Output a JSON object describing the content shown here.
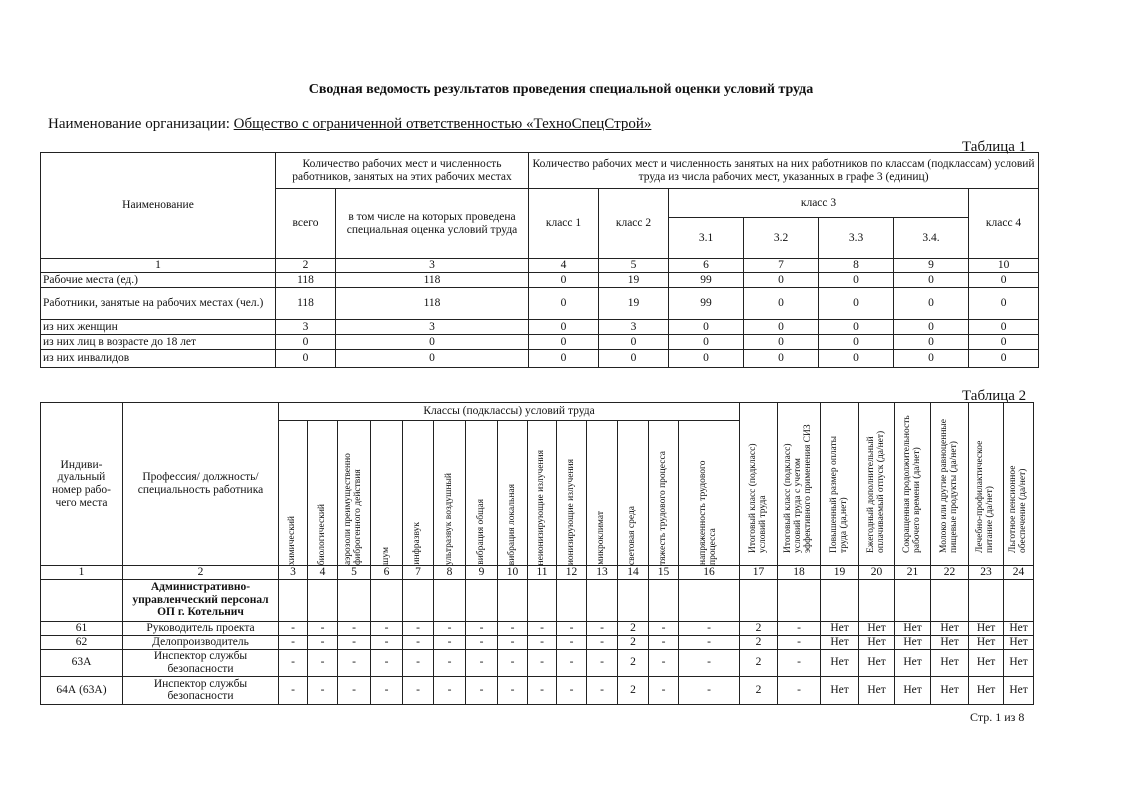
{
  "title": "Сводная ведомость результатов проведения специальной оценки условий труда",
  "org": {
    "label": "Наименование организации:",
    "value": "Общество с ограниченной ответственностью «ТехноСпецСтрой»"
  },
  "table1": {
    "caption": "Таблица 1",
    "h_name": "Наименование",
    "h_count": "Количество рабочих мест и численность работников, занятых на этих рабочих местах",
    "h_classes": "Количество рабочих мест и численность занятых на них работников по классам (подклассам) условий труда из числа рабочих мест, указанных в графе 3 (единиц)",
    "h_total": "всего",
    "h_assessed": "в том числе на которых проведена специальная оценка условий труда",
    "h_c1": "класс 1",
    "h_c2": "класс 2",
    "h_c3": "класс 3",
    "h_c4": "класс 4",
    "h_sub": [
      "3.1",
      "3.2",
      "3.3",
      "3.4."
    ],
    "nums": [
      "1",
      "2",
      "3",
      "4",
      "5",
      "6",
      "7",
      "8",
      "9",
      "10"
    ],
    "rows": [
      {
        "name": "Рабочие места (ед.)",
        "v": [
          "118",
          "118",
          "0",
          "19",
          "99",
          "0",
          "0",
          "0",
          "0"
        ]
      },
      {
        "name": "Работники, занятые на рабочих местах (чел.)",
        "v": [
          "118",
          "118",
          "0",
          "19",
          "99",
          "0",
          "0",
          "0",
          "0"
        ]
      },
      {
        "name": "из них женщин",
        "v": [
          "3",
          "3",
          "0",
          "3",
          "0",
          "0",
          "0",
          "0",
          "0"
        ]
      },
      {
        "name": "из них лиц в возрасте до 18 лет",
        "v": [
          "0",
          "0",
          "0",
          "0",
          "0",
          "0",
          "0",
          "0",
          "0"
        ]
      },
      {
        "name": "из них инвалидов",
        "v": [
          "0",
          "0",
          "0",
          "0",
          "0",
          "0",
          "0",
          "0",
          "0"
        ]
      }
    ]
  },
  "table2": {
    "caption": "Таблица 2",
    "h_id": "Индиви-дуальный номер рабо-чего места",
    "h_prof": "Профессия/ должность/ специальность работника",
    "h_classes": "Классы (подклассы) условий труда",
    "h_cols": [
      "химический",
      "биологический",
      "аэрозоли преимущественно фиброгенного действия",
      "шум",
      "инфразвук",
      "ультразвук воздушный",
      "вибрация общая",
      "вибрация локальная",
      "неионизирующие излучения",
      "ионизирующие излучения",
      "микроклимат",
      "световая среда",
      "тяжесть трудового процесса",
      "напряженность трудового процесса",
      "Итоговый класс (подкласс) условий труда",
      "Итоговый класс (подкласс) условий труда с учетом эффективного применения СИЗ",
      "Повышенный размер оплаты труда (да,нет)",
      "Ежегодный дополнительный оплачиваемый отпуск (да/нет)",
      "Сокращенная продолжительность рабочего времени (да/нет)",
      "Молоко или другие равноценные пищевые продукты (да/нет)",
      "Лечебно-профилактическое питание (да/нет)",
      "Льготное пенсионное обеспечение (да/нет)"
    ],
    "nums": [
      "1",
      "2",
      "3",
      "4",
      "5",
      "6",
      "7",
      "8",
      "9",
      "10",
      "11",
      "12",
      "13",
      "14",
      "15",
      "16",
      "17",
      "18",
      "19",
      "20",
      "21",
      "22",
      "23",
      "24"
    ],
    "group": "Административно-управленческий персонал ОП г. Котельнич",
    "rows": [
      {
        "id": "61",
        "prof": "Руководитель проекта",
        "v": [
          "-",
          "-",
          "-",
          "-",
          "-",
          "-",
          "-",
          "-",
          "-",
          "-",
          "-",
          "2",
          "-",
          "-",
          "2",
          "-",
          "Нет",
          "Нет",
          "Нет",
          "Нет",
          "Нет",
          "Нет"
        ]
      },
      {
        "id": "62",
        "prof": "Делопроизводитель",
        "v": [
          "-",
          "-",
          "-",
          "-",
          "-",
          "-",
          "-",
          "-",
          "-",
          "-",
          "-",
          "2",
          "-",
          "-",
          "2",
          "-",
          "Нет",
          "Нет",
          "Нет",
          "Нет",
          "Нет",
          "Нет"
        ]
      },
      {
        "id": "63А",
        "prof": "Инспектор службы безопасности",
        "v": [
          "-",
          "-",
          "-",
          "-",
          "-",
          "-",
          "-",
          "-",
          "-",
          "-",
          "-",
          "2",
          "-",
          "-",
          "2",
          "-",
          "Нет",
          "Нет",
          "Нет",
          "Нет",
          "Нет",
          "Нет"
        ]
      },
      {
        "id": "64А (63А)",
        "prof": "Инспектор службы безопасности",
        "v": [
          "-",
          "-",
          "-",
          "-",
          "-",
          "-",
          "-",
          "-",
          "-",
          "-",
          "-",
          "2",
          "-",
          "-",
          "2",
          "-",
          "Нет",
          "Нет",
          "Нет",
          "Нет",
          "Нет",
          "Нет"
        ]
      }
    ]
  },
  "page": "Стр. 1 из 8"
}
